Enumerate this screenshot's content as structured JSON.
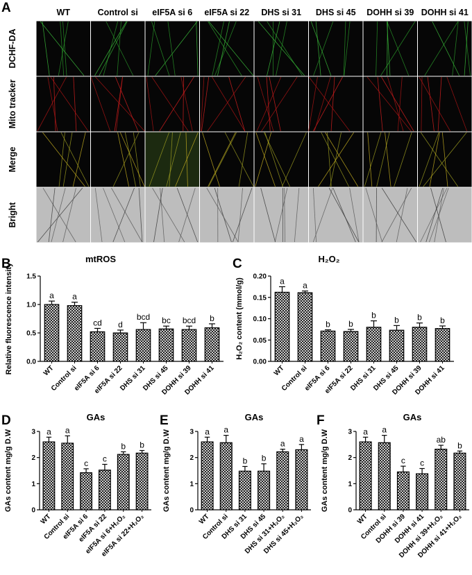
{
  "panel_a": {
    "label": "A",
    "columns": [
      "WT",
      "Control si",
      "eIF5A si 6",
      "eIF5A si 22",
      "DHS si 31",
      "DHS si 45",
      "DOHH si 39",
      "DOHH si 41"
    ],
    "rows": [
      "DCHF-DA",
      "Mito tracker",
      "Merge",
      "Bright"
    ]
  },
  "chart_data": [
    {
      "type": "bar",
      "panel": "B",
      "title": "mtROS",
      "ylabel": "Relative fluorescence intensity",
      "categories": [
        "WT",
        "Control si",
        "eIF5A si 6",
        "eIF5A si 22",
        "DHS si 31",
        "DHS si 45",
        "DOHH si 39",
        "DOHH si 41"
      ],
      "values": [
        1.0,
        0.98,
        0.52,
        0.5,
        0.56,
        0.57,
        0.56,
        0.59
      ],
      "errors": [
        0.06,
        0.06,
        0.06,
        0.05,
        0.12,
        0.05,
        0.06,
        0.07
      ],
      "annotations": [
        "a",
        "a",
        "cd",
        "d",
        "bcd",
        "bc",
        "bcd",
        "b"
      ],
      "color": "#000000",
      "ylim": [
        0,
        1.5
      ],
      "yticks": [
        {
          "value": 0,
          "label": "0.0"
        },
        0.5,
        {
          "value": 1,
          "label": "1.0"
        },
        1.5
      ]
    },
    {
      "type": "bar",
      "panel": "C",
      "title": "H₂O₂",
      "ylabel": "H₂O₂ content (mmol/g)",
      "categories": [
        "WT",
        "Control si",
        "eIF5A si 6",
        "eIF5A si 22",
        "DHS si 31",
        "DHS si 45",
        "DOHH si 39",
        "DOHH si 41"
      ],
      "values": [
        0.162,
        0.161,
        0.071,
        0.07,
        0.08,
        0.073,
        0.08,
        0.077
      ],
      "errors": [
        0.013,
        0.004,
        0.003,
        0.005,
        0.015,
        0.011,
        0.01,
        0.006
      ],
      "annotations": [
        "a",
        "a",
        "b",
        "b",
        "b",
        "b",
        "b",
        "b"
      ],
      "color": "#000000",
      "ylim": [
        0,
        0.2
      ],
      "yticks": [
        {
          "value": 0,
          "label": "0.00"
        },
        0.05,
        {
          "value": 0.1,
          "label": "0.10"
        },
        0.15,
        {
          "value": 0.2,
          "label": "0.20"
        }
      ]
    },
    {
      "type": "bar",
      "panel": "D",
      "title": "GAs",
      "ylabel": "GAs content mg/g D.W",
      "categories": [
        "WT",
        "Control si",
        "eIF5A si 6",
        "eIF5A si 22",
        "eIF5A si 6+H₂O₂",
        "eIF5A si 22+H₂O₂"
      ],
      "values": [
        2.6,
        2.55,
        1.42,
        1.52,
        2.12,
        2.17
      ],
      "errors": [
        0.18,
        0.28,
        0.15,
        0.22,
        0.1,
        0.1
      ],
      "annotations": [
        "a",
        "a",
        "c",
        "c",
        "b",
        "b"
      ],
      "color": "#000000",
      "ylim": [
        0,
        3
      ],
      "yticks": [
        0,
        1,
        2,
        3
      ]
    },
    {
      "type": "bar",
      "panel": "E",
      "title": "GAs",
      "ylabel": "GAs content mg/g D.W",
      "categories": [
        "WT",
        "Control si",
        "DHS si 31",
        "DHS si 45",
        "DHS si 31+H₂O₂",
        "DHS si 45+H₂O₂"
      ],
      "values": [
        2.6,
        2.57,
        1.48,
        1.48,
        2.22,
        2.3
      ],
      "errors": [
        0.18,
        0.28,
        0.18,
        0.28,
        0.1,
        0.2
      ],
      "annotations": [
        "a",
        "a",
        "b",
        "b",
        "a",
        "a"
      ],
      "color": "#000000",
      "ylim": [
        0,
        3
      ],
      "yticks": [
        0,
        1,
        2,
        3
      ]
    },
    {
      "type": "bar",
      "panel": "F",
      "title": "GAs",
      "ylabel": "GAs content mg/g D.W",
      "categories": [
        "WT",
        "Control si",
        "DOHH si 39",
        "DOHH si 41",
        "DOHH si 39+H₂O₂",
        "DOHH si 41+H₂O₂"
      ],
      "values": [
        2.6,
        2.57,
        1.45,
        1.38,
        2.32,
        2.17
      ],
      "errors": [
        0.18,
        0.28,
        0.22,
        0.2,
        0.15,
        0.08
      ],
      "annotations": [
        "a",
        "a",
        "c",
        "c",
        "ab",
        "b"
      ],
      "color": "#000000",
      "ylim": [
        0,
        3
      ],
      "yticks": [
        0,
        1,
        2,
        3
      ]
    }
  ]
}
